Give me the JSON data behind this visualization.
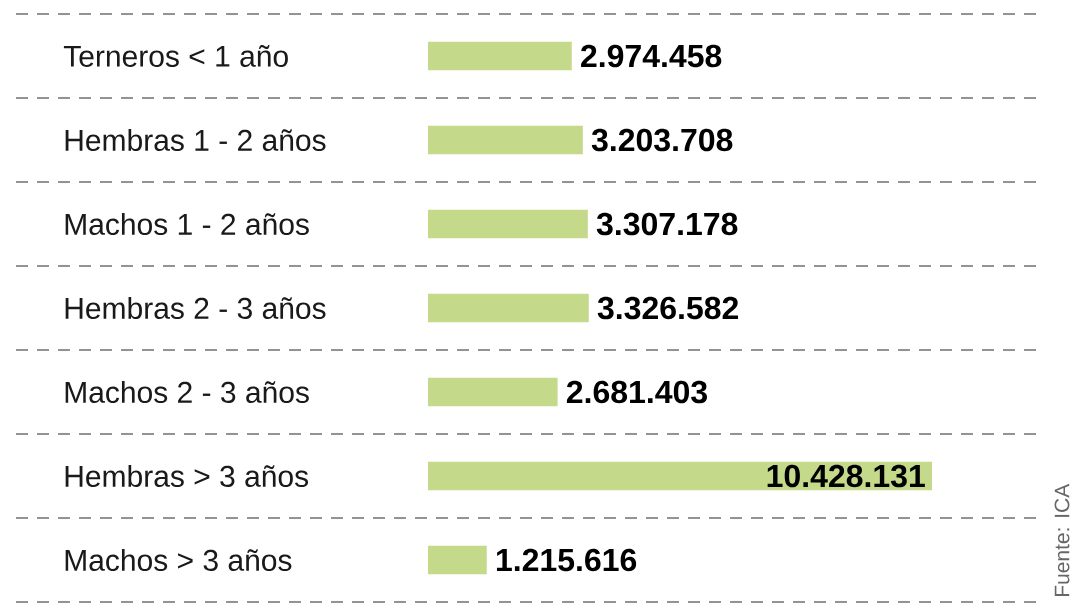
{
  "chart_data": {
    "type": "bar",
    "orientation": "horizontal",
    "categories": [
      "Terneros < 1 año",
      "Hembras 1 - 2 años",
      "Machos 1 - 2 años",
      "Hembras 2 - 3 años",
      "Machos 2 - 3 años",
      "Hembras > 3 años",
      "Machos > 3 años"
    ],
    "values": [
      2974458,
      3203708,
      3307178,
      3326582,
      2681403,
      10428131,
      1215616
    ],
    "value_labels": [
      "2.974.458",
      "3.203.708",
      "3.307.178",
      "3.326.582",
      "2.681.403",
      "10.428.131",
      "1.215.616"
    ],
    "color": "#c5d98b",
    "grid": "y",
    "tick_labels": "y",
    "annotations": [
      "Fuente: ICA"
    ]
  }
}
